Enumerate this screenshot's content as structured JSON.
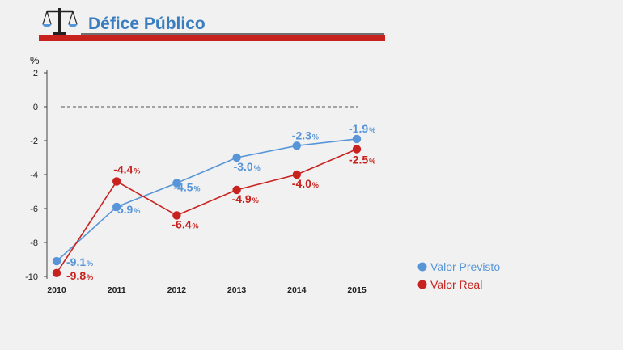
{
  "header": {
    "title": "Défice Público",
    "title_color": "#3a7ec0",
    "bar_color": "#c8221f",
    "icon": "scales-icon"
  },
  "chart_data": {
    "type": "line",
    "title": "Défice Público",
    "ylabel": "%",
    "xlabel": "",
    "ylim": [
      -10,
      2
    ],
    "yticks": [
      2,
      0,
      -2,
      -4,
      -6,
      -8,
      -10
    ],
    "reference_line": {
      "y": 0,
      "style": "dashed"
    },
    "categories": [
      "2010",
      "2011",
      "2012",
      "2013",
      "2014",
      "2015"
    ],
    "series": [
      {
        "name": "Valor Previsto",
        "color": "#5795d8",
        "values": [
          -9.1,
          -5.9,
          -4.5,
          -3.0,
          -2.3,
          -1.9
        ],
        "labels": [
          "-9.1",
          "-5.9",
          "-4.5",
          "-3.0",
          "-2.3",
          "-1.9"
        ]
      },
      {
        "name": "Valor Real",
        "color": "#c8221f",
        "values": [
          -9.8,
          -4.4,
          -6.4,
          -4.9,
          -4.0,
          -2.5
        ],
        "labels": [
          "-9.8",
          "-4.4",
          "-6.4",
          "-4.9",
          "-4.0",
          "-2.5"
        ]
      }
    ],
    "label_suffix": "%",
    "legend_position": "right"
  }
}
